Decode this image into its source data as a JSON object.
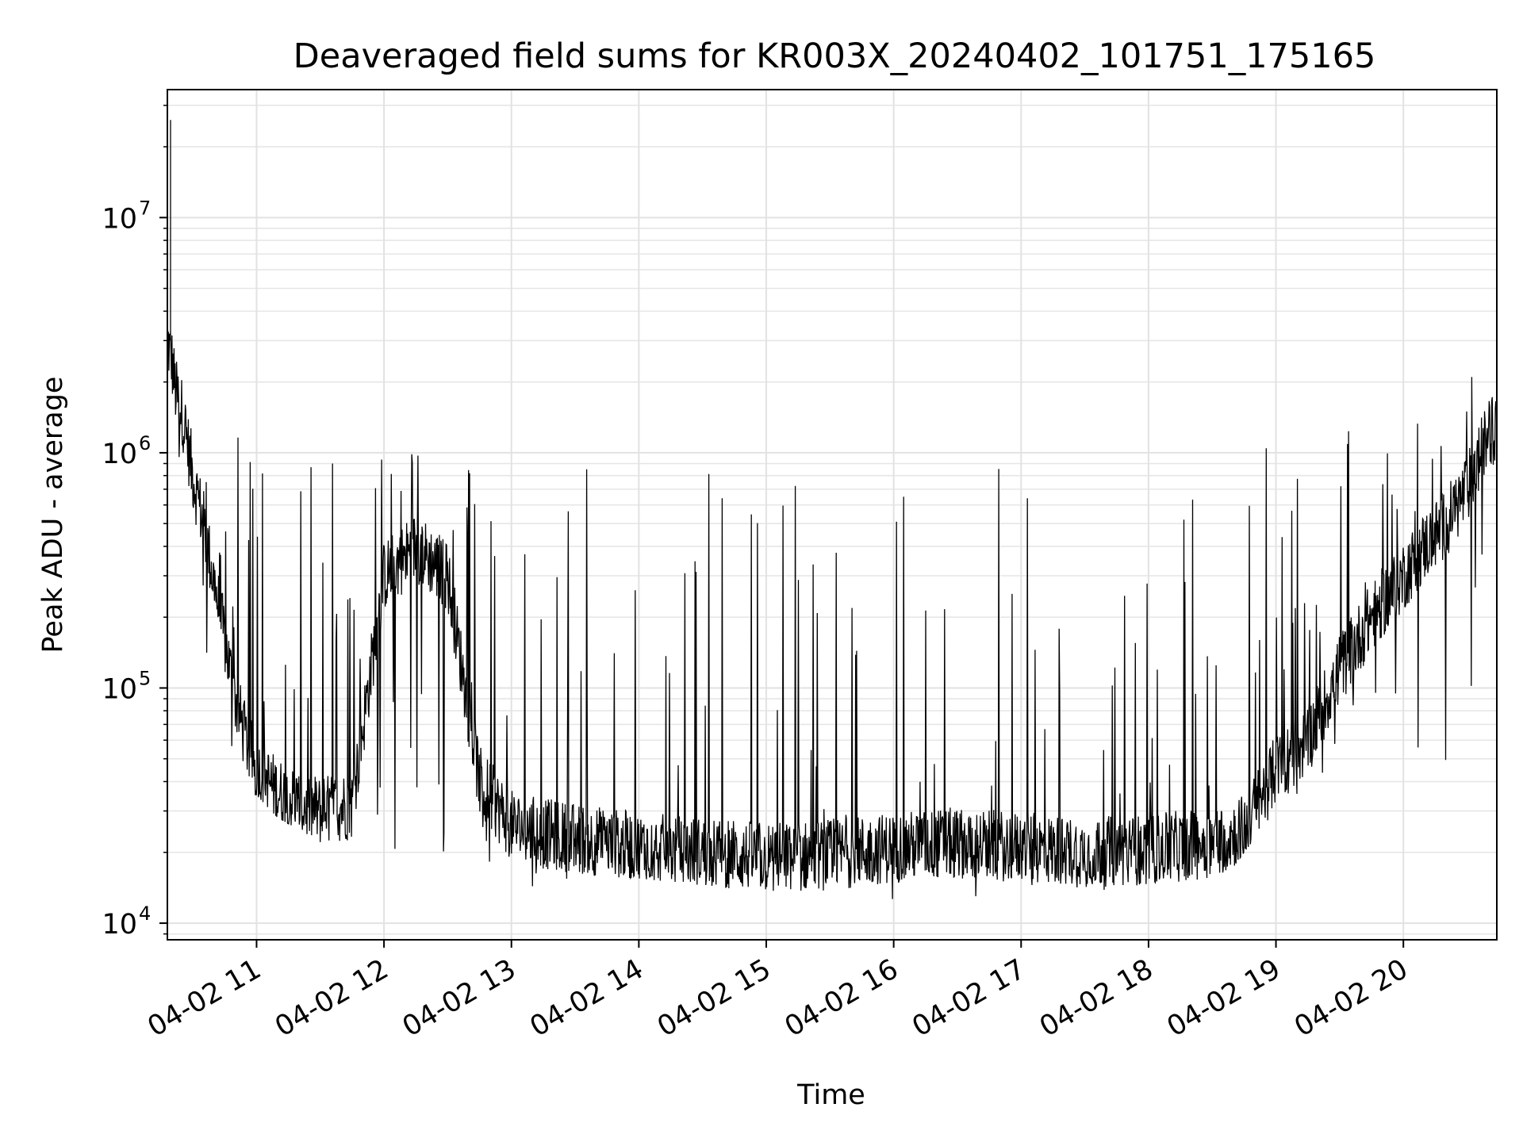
{
  "chart_data": {
    "type": "line",
    "title": "Deaveraged field sums for KR003X_20240402_101751_175165",
    "xlabel": "Time",
    "ylabel": "Peak ADU - average",
    "yscale": "log",
    "ylim": [
      8500,
      35000000
    ],
    "xlim": [
      "04-02 10:18",
      "04-02 20:44"
    ],
    "x_ticks": [
      "04-02 11",
      "04-02 12",
      "04-02 13",
      "04-02 14",
      "04-02 15",
      "04-02 16",
      "04-02 17",
      "04-02 18",
      "04-02 19",
      "04-02 20"
    ],
    "y_ticks": [
      {
        "base": "10",
        "exp": "4",
        "value": 10000
      },
      {
        "base": "10",
        "exp": "5",
        "value": 100000
      },
      {
        "base": "10",
        "exp": "6",
        "value": 1000000
      },
      {
        "base": "10",
        "exp": "7",
        "value": 10000000
      }
    ],
    "grid": "major+minor",
    "legend": "none",
    "line_color": "#000000",
    "series": [
      {
        "x": [
          "04-02 10:18",
          "04-02 10:20",
          "04-02 10:22",
          "04-02 10:25",
          "04-02 10:30",
          "04-02 10:35",
          "04-02 10:40",
          "04-02 10:45",
          "04-02 10:50",
          "04-02 10:55",
          "04-02 11:00",
          "04-02 11:10",
          "04-02 11:20",
          "04-02 11:30",
          "04-02 11:45",
          "04-02 12:00",
          "04-02 12:15",
          "04-02 12:30",
          "04-02 12:45",
          "04-02 13:00",
          "04-02 13:15",
          "04-02 13:30",
          "04-02 14:00",
          "04-02 14:30",
          "04-02 15:00",
          "04-02 15:30",
          "04-02 16:00",
          "04-02 16:30",
          "04-02 17:00",
          "04-02 17:30",
          "04-02 18:00",
          "04-02 18:30",
          "04-02 18:45",
          "04-02 19:00",
          "04-02 19:15",
          "04-02 19:30",
          "04-02 19:45",
          "04-02 20:00",
          "04-02 20:10",
          "04-02 20:20",
          "04-02 20:30",
          "04-02 20:40",
          "04-02 20:44"
        ],
        "base": [
          3000000,
          2500000,
          1800000,
          1500000,
          800000,
          500000,
          280000,
          160000,
          90000,
          60000,
          45000,
          36000,
          32000,
          30000,
          32000,
          300000,
          400000,
          300000,
          40000,
          26000,
          24000,
          23000,
          21000,
          20000,
          19000,
          19500,
          21000,
          22000,
          21000,
          20000,
          20500,
          22000,
          25000,
          45000,
          60000,
          120000,
          200000,
          300000,
          400000,
          500000,
          700000,
          1200000,
          1300000
        ],
        "spikes_max": [
          26000000,
          5500000,
          2500000,
          2000000,
          1500000,
          1100000,
          1000000,
          800000,
          1200000,
          1150000,
          1150000,
          1100000,
          1000000,
          1000000,
          1000000,
          1100000,
          1050000,
          1000000,
          950000,
          850000,
          880000,
          900000,
          880000,
          850000,
          850000,
          850000,
          950000,
          900000,
          900000,
          880000,
          900000,
          880000,
          950000,
          1100000,
          1200000,
          1250000,
          1200000,
          1300000,
          1500000,
          1800000,
          2200000,
          2500000,
          2200000
        ],
        "min": [
          1500000,
          1400000,
          1300000,
          160000,
          150000,
          130000,
          100000,
          60000,
          40000,
          35000,
          35000,
          28000,
          25000,
          22000,
          20000,
          19000,
          18000,
          17000,
          16000,
          15000,
          14000,
          16000,
          15500,
          14500,
          13500,
          13000,
          12500,
          13000,
          12000,
          14000,
          13500,
          13000,
          20000,
          30000,
          35000,
          40000,
          42000,
          45000,
          42000,
          40000,
          38000,
          42000,
          45000
        ]
      }
    ]
  }
}
